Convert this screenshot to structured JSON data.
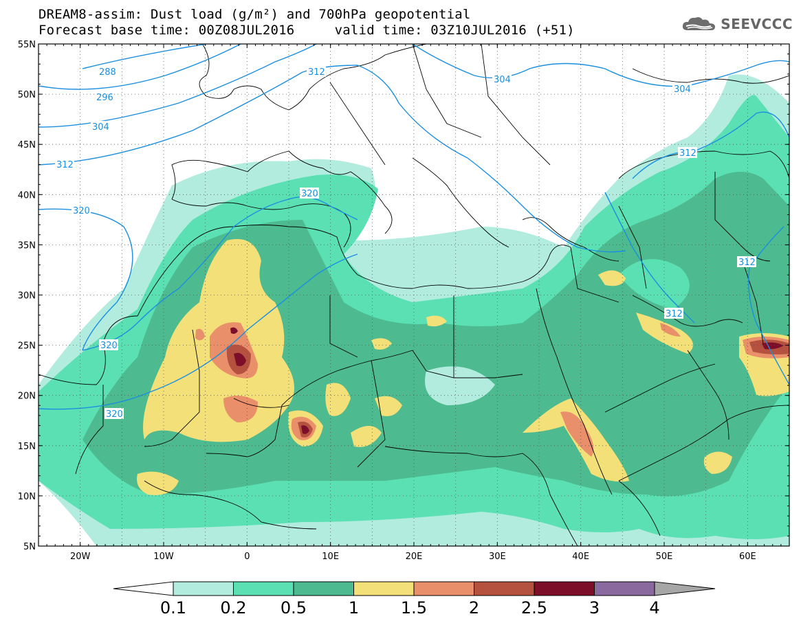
{
  "title": {
    "line1": "DREAM8-assim: Dust load (g/m²) and 700hPa geopotential",
    "line2": "Forecast base time: 00Z08JUL2016     valid time: 03Z10JUL2016 (+51)"
  },
  "logo": {
    "icon": "cloud-icon",
    "text": "SEEVCCC"
  },
  "axes": {
    "lat_labels": [
      "55N",
      "50N",
      "45N",
      "40N",
      "35N",
      "30N",
      "25N",
      "20N",
      "15N",
      "10N",
      "5N"
    ],
    "lon_labels": [
      "20W",
      "10W",
      "0",
      "10E",
      "20E",
      "30E",
      "40E",
      "50E",
      "60E"
    ],
    "lon_range": [
      -25,
      65
    ],
    "lat_range": [
      5,
      55
    ]
  },
  "contour_labels": [
    "288",
    "296",
    "304",
    "312",
    "320",
    "312",
    "320",
    "320",
    "320",
    "304",
    "304",
    "312",
    "312",
    "312"
  ],
  "colorbar": {
    "ticks": [
      "0.1",
      "0.2",
      "0.5",
      "1",
      "1.5",
      "2",
      "2.5",
      "3",
      "4"
    ],
    "colors": [
      "#b2ecdf",
      "#5be0b3",
      "#4dbb8f",
      "#f3e079",
      "#e98f6a",
      "#b4523f",
      "#7d0e2a",
      "#8a6a9e"
    ],
    "under_color": "#ffffff",
    "over_color": "#a6a6a6"
  },
  "colors": {
    "contour": "#1a8fe0",
    "border": "#000000",
    "grid": "#555555"
  }
}
